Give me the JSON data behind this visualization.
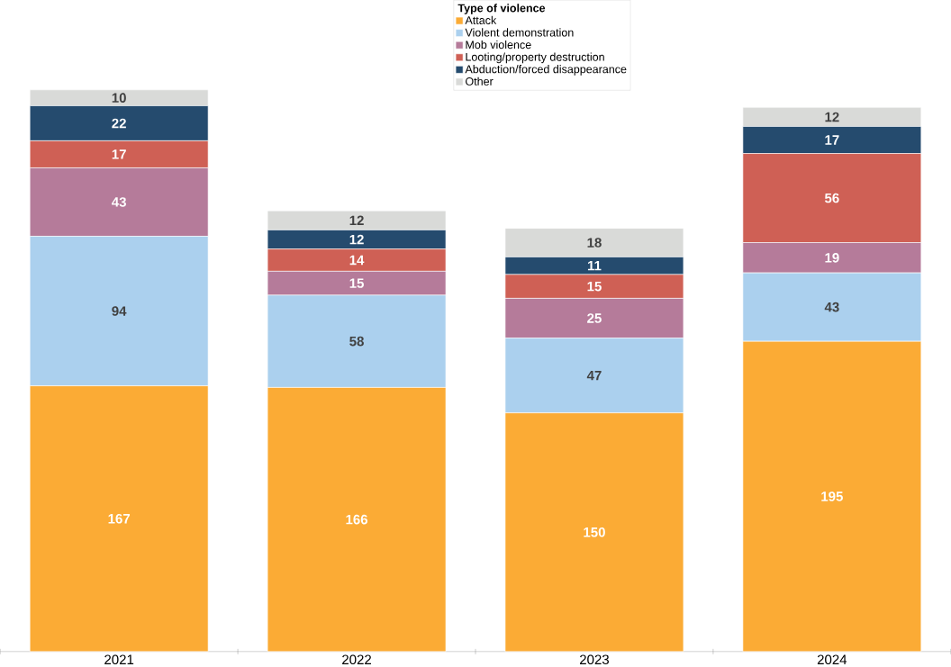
{
  "chart_data": {
    "type": "bar",
    "stacked": true,
    "data_labels": true,
    "legend": "top",
    "legend_title": "Type of violence",
    "categories": [
      "2021",
      "2022",
      "2023",
      "2024"
    ],
    "series": [
      {
        "name": "Attack",
        "color": "#fbab35",
        "values": [
          167,
          166,
          150,
          195
        ]
      },
      {
        "name": "Violent demonstration",
        "color": "#abd0ee",
        "values": [
          94,
          58,
          47,
          43
        ]
      },
      {
        "name": "Mob violence",
        "color": "#b57b9a",
        "values": [
          43,
          15,
          25,
          19
        ]
      },
      {
        "name": "Looting/property destruction",
        "color": "#cf6055",
        "values": [
          17,
          14,
          15,
          56
        ]
      },
      {
        "name": "Abduction/forced disappearance",
        "color": "#254b6e",
        "values": [
          22,
          12,
          11,
          17
        ]
      },
      {
        "name": "Other",
        "color": "#d9dad8",
        "values": [
          10,
          12,
          18,
          12
        ]
      }
    ]
  }
}
